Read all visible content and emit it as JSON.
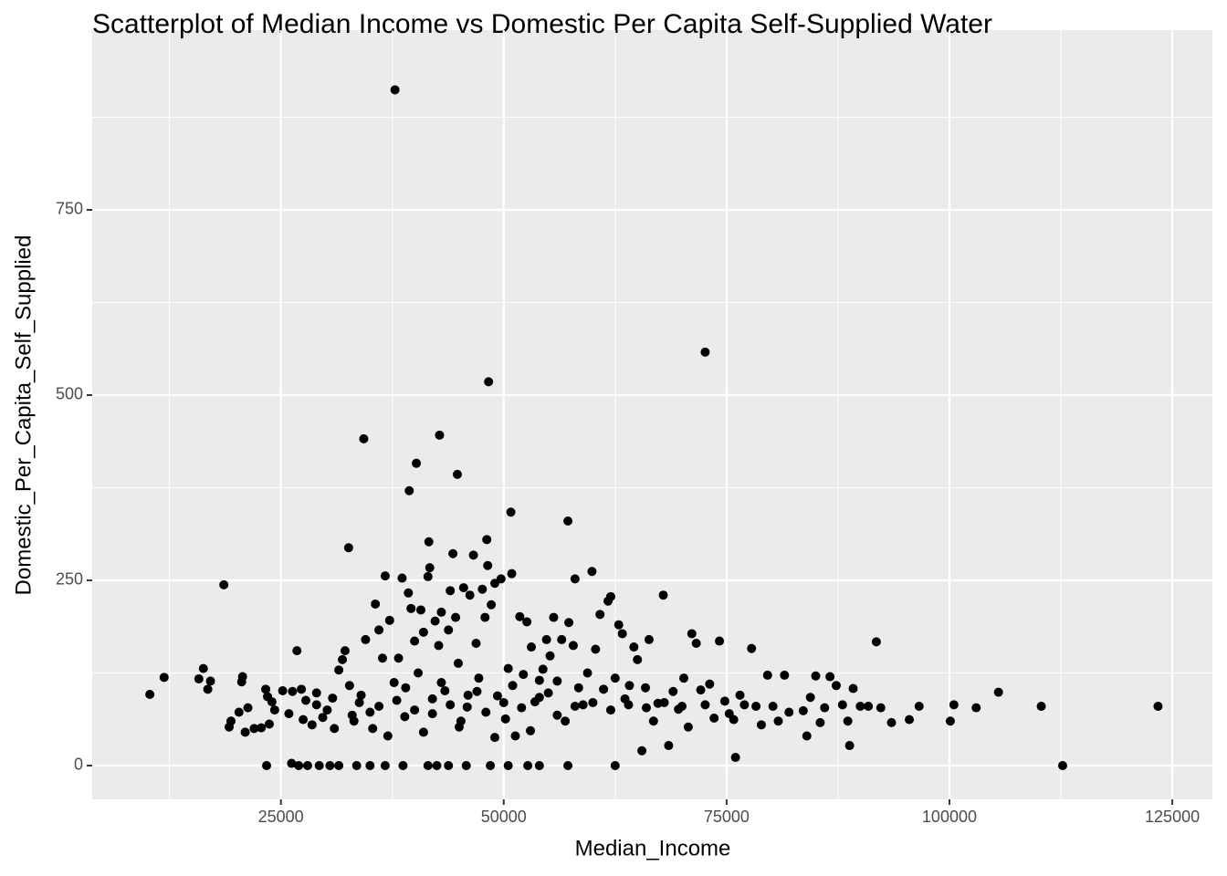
{
  "chart_data": {
    "type": "scatter",
    "title": "Scatterplot of Median Income vs Domestic Per Capita Self-Supplied Water",
    "x_label": "Median_Income",
    "y_label": "Domestic_Per_Capita_Self_Supplied",
    "color": "#000000",
    "grid": true,
    "xlim": [
      3834,
      129499
    ],
    "ylim": [
      -45.6,
      992.6
    ],
    "xticks": [
      25000,
      50000,
      75000,
      100000,
      125000
    ],
    "yticks": [
      0,
      250,
      500,
      750
    ],
    "x_minor_ticks": [
      12500,
      37500,
      62500,
      87500,
      112500
    ],
    "y_minor_ticks": [
      125,
      375,
      625,
      875
    ],
    "x": [
      37800,
      72600,
      48300,
      34300,
      42800,
      40200,
      44800,
      39400,
      50800,
      57200,
      48100,
      32600,
      41600,
      18600,
      10300,
      11900,
      123400,
      112700,
      110300,
      105500,
      103000,
      100500,
      100100,
      91800,
      88800,
      76000,
      93500,
      96600,
      95500,
      23400,
      26200,
      27000,
      28000,
      29300,
      30500,
      31500,
      33500,
      35000,
      36700,
      38700,
      41500,
      42500,
      43800,
      45800,
      48500,
      50500,
      52700,
      54000,
      57200,
      62500,
      15800,
      16300,
      16800,
      17100,
      19200,
      19400,
      20300,
      20600,
      20700,
      21000,
      21300,
      22000,
      22800,
      23300,
      23500,
      23700,
      24000,
      24300,
      25200,
      25900,
      26300,
      26800,
      27300,
      27800,
      28500,
      29000,
      29700,
      30200,
      30800,
      31500,
      31900,
      32200,
      32700,
      33200,
      33800,
      34500,
      35000,
      35300,
      35600,
      36000,
      36400,
      36700,
      37200,
      37700,
      38200,
      38600,
      38900,
      39300,
      39600,
      40000,
      40400,
      40700,
      41000,
      41500,
      41700,
      42000,
      42300,
      42700,
      43000,
      43400,
      43800,
      44000,
      44300,
      44600,
      44900,
      45200,
      45500,
      45900,
      46200,
      46600,
      46900,
      47200,
      47600,
      47900,
      48200,
      48600,
      49000,
      49300,
      49700,
      50200,
      50500,
      50900,
      51300,
      51800,
      52200,
      52600,
      53100,
      53500,
      54000,
      54400,
      54800,
      55200,
      55600,
      56000,
      56500,
      56900,
      57300,
      57800,
      58000,
      58400,
      58900,
      59400,
      59900,
      60300,
      60800,
      61200,
      61700,
      62000,
      62500,
      62900,
      63300,
      63600,
      64100,
      64600,
      65000,
      65500,
      65900,
      66300,
      66800,
      67300,
      67900,
      68500,
      69000,
      69600,
      70200,
      70700,
      71100,
      71600,
      72100,
      72600,
      73100,
      73600,
      74200,
      74800,
      75300,
      75800,
      76500,
      77000,
      77800,
      78300,
      78900,
      79600,
      80200,
      80800,
      81500,
      82000,
      83600,
      84000,
      84400,
      85000,
      85500,
      86000,
      86600,
      87300,
      88000,
      88600,
      89200,
      90000,
      90900,
      92300,
      33000,
      34000,
      36000,
      38000,
      40000,
      42000,
      44000,
      46000,
      48000,
      50000,
      52000,
      54000,
      56000,
      58000,
      60000,
      62000,
      64000,
      66000,
      68000,
      70000,
      37000,
      41000,
      45000,
      49000,
      53000,
      39000,
      43000,
      47000,
      51000,
      55000,
      31000,
      29000,
      27500
    ],
    "values": [
      912,
      558,
      518,
      441,
      446,
      408,
      393,
      371,
      342,
      330,
      305,
      294,
      302,
      244,
      96,
      119,
      80,
      0,
      80,
      99,
      78,
      82,
      60,
      167,
      27,
      11,
      58,
      80,
      62,
      0,
      3,
      0,
      0,
      0,
      0,
      0,
      0,
      0,
      0,
      0,
      0,
      0,
      0,
      0,
      0,
      0,
      0,
      0,
      0,
      0,
      117,
      131,
      103,
      114,
      52,
      60,
      72,
      113,
      120,
      45,
      78,
      50,
      51,
      103,
      93,
      56,
      86,
      75,
      101,
      70,
      100,
      155,
      103,
      88,
      55,
      98,
      65,
      75,
      91,
      129,
      143,
      155,
      108,
      60,
      85,
      170,
      72,
      50,
      218,
      183,
      145,
      256,
      196,
      112,
      145,
      253,
      66,
      233,
      212,
      168,
      125,
      210,
      180,
      255,
      267,
      90,
      195,
      162,
      207,
      101,
      183,
      236,
      286,
      200,
      138,
      60,
      240,
      79,
      230,
      284,
      165,
      118,
      238,
      200,
      270,
      217,
      246,
      94,
      252,
      63,
      131,
      259,
      40,
      201,
      123,
      194,
      160,
      86,
      115,
      130,
      170,
      148,
      200,
      114,
      170,
      60,
      193,
      162,
      252,
      105,
      82,
      125,
      262,
      157,
      204,
      103,
      222,
      228,
      118,
      190,
      178,
      90,
      108,
      160,
      143,
      20,
      105,
      170,
      60,
      84,
      230,
      27,
      100,
      76,
      118,
      52,
      178,
      165,
      102,
      82,
      110,
      64,
      168,
      87,
      70,
      62,
      95,
      82,
      158,
      80,
      55,
      122,
      80,
      60,
      122,
      72,
      74,
      40,
      92,
      121,
      58,
      78,
      120,
      108,
      82,
      60,
      104,
      80,
      80,
      78,
      68,
      95,
      80,
      88,
      75,
      70,
      82,
      95,
      72,
      85,
      78,
      92,
      68,
      80,
      85,
      75,
      82,
      78,
      85,
      80,
      40,
      45,
      52,
      38,
      47,
      105,
      112,
      100,
      108,
      98,
      50,
      82,
      62
    ]
  }
}
